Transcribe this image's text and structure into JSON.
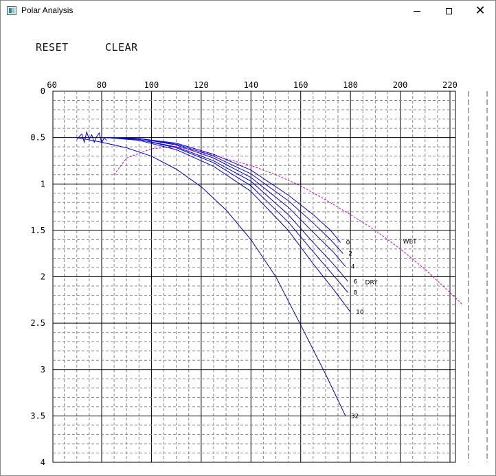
{
  "window": {
    "title": "Polar Analysis",
    "icon": "app-window-icon",
    "controls": [
      "minimize-icon",
      "maximize-icon",
      "close-icon"
    ]
  },
  "commands": {
    "reset": "RESET",
    "clear": "CLEAR"
  },
  "chart_data": {
    "type": "line",
    "x_ticks": [
      "60",
      "80",
      "100",
      "120",
      "140",
      "160",
      "180",
      "200",
      "220"
    ],
    "y_ticks": [
      "0",
      "0.5",
      "1",
      "1.5",
      "2",
      "2.5",
      "3",
      "3.5",
      "4"
    ],
    "xlim": [
      60,
      225
    ],
    "ylim": [
      4,
      0
    ],
    "grid": true,
    "colors": {
      "curves": "#0000cc",
      "wet": "#cc00cc",
      "grid_major": "#000000",
      "grid_minor": "#888888"
    },
    "curve_labels": [
      "0",
      "2",
      "4",
      "6",
      "DRY",
      "8",
      "10",
      "32",
      "WET"
    ],
    "series": [
      {
        "name": "0",
        "color": "#0000cc",
        "x": [
          82,
          95,
          110,
          125,
          140,
          155,
          165,
          172,
          176
        ],
        "y": [
          0.5,
          0.51,
          0.56,
          0.68,
          0.85,
          1.12,
          1.33,
          1.5,
          1.63
        ]
      },
      {
        "name": "2",
        "color": "#0000cc",
        "x": [
          82,
          95,
          110,
          125,
          140,
          155,
          165,
          172,
          177
        ],
        "y": [
          0.5,
          0.51,
          0.57,
          0.7,
          0.89,
          1.18,
          1.42,
          1.6,
          1.75
        ]
      },
      {
        "name": "4",
        "color": "#0000cc",
        "x": [
          82,
          95,
          110,
          125,
          140,
          155,
          165,
          173,
          178
        ],
        "y": [
          0.5,
          0.51,
          0.58,
          0.72,
          0.93,
          1.25,
          1.52,
          1.73,
          1.89
        ]
      },
      {
        "name": "6",
        "color": "#0000cc",
        "x": [
          82,
          95,
          110,
          125,
          140,
          155,
          165,
          173,
          179
        ],
        "y": [
          0.5,
          0.52,
          0.6,
          0.75,
          0.97,
          1.33,
          1.63,
          1.86,
          2.05
        ]
      },
      {
        "name": "8",
        "color": "#0000cc",
        "x": [
          82,
          95,
          110,
          125,
          140,
          155,
          165,
          173,
          179
        ],
        "y": [
          0.5,
          0.52,
          0.61,
          0.77,
          1.02,
          1.41,
          1.73,
          1.98,
          2.17
        ]
      },
      {
        "name": "10",
        "color": "#0000cc",
        "x": [
          82,
          95,
          110,
          125,
          140,
          155,
          165,
          173,
          180
        ],
        "y": [
          0.5,
          0.53,
          0.63,
          0.81,
          1.08,
          1.5,
          1.86,
          2.13,
          2.38
        ]
      },
      {
        "name": "32",
        "color": "#0000cc",
        "x": [
          70,
          80,
          90,
          100,
          110,
          120,
          130,
          140,
          150,
          160,
          170,
          178
        ],
        "y": [
          0.5,
          0.55,
          0.61,
          0.7,
          0.84,
          1.03,
          1.28,
          1.6,
          2.0,
          2.52,
          3.05,
          3.5
        ]
      },
      {
        "name": "WET",
        "color": "#cc00cc",
        "x": [
          85,
          90,
          100,
          110,
          120,
          130,
          140,
          150,
          160,
          170,
          180,
          190,
          200,
          210,
          220,
          225
        ],
        "y": [
          0.9,
          0.72,
          0.62,
          0.6,
          0.65,
          0.73,
          0.8,
          0.9,
          1.02,
          1.17,
          1.33,
          1.5,
          1.7,
          1.92,
          2.17,
          2.3
        ]
      }
    ]
  }
}
